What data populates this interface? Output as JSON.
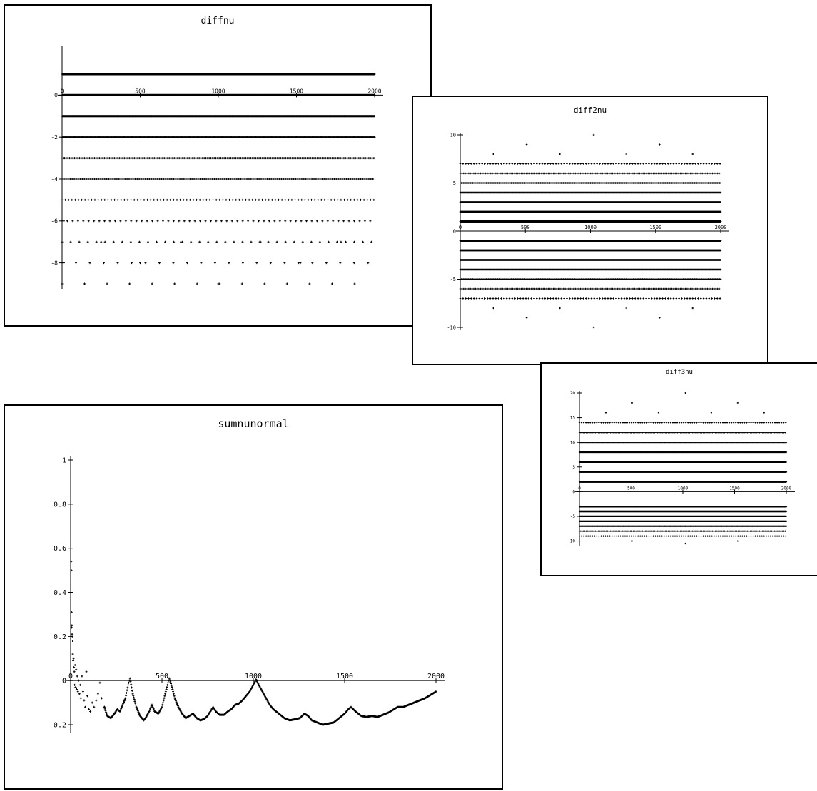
{
  "windows": [
    {
      "id": "diffnu",
      "title": "diffnu"
    },
    {
      "id": "diff2nu",
      "title": "diff2nu"
    },
    {
      "id": "diff3nu",
      "title": "diff3nu"
    },
    {
      "id": "sumnunormal",
      "title": "sumnunormal"
    }
  ],
  "chart_data": [
    {
      "type": "scatter",
      "title": "diffnu",
      "xlabel": "",
      "ylabel": "",
      "xlim": [
        0,
        2000
      ],
      "ylim": [
        -9,
        1
      ],
      "xticks": [
        0,
        500,
        1000,
        1500,
        2000
      ],
      "yticks": [
        0,
        -2,
        -4,
        -6,
        -8
      ],
      "xtick_labels": [
        "0",
        "500",
        "1000",
        "1500",
        "2000"
      ],
      "ytick_labels": [
        "0",
        "-2",
        "-4",
        "-6",
        "-8"
      ],
      "marker_color": "#000000",
      "series": [
        {
          "y": 1,
          "spacing": 1
        },
        {
          "y": 0,
          "spacing": 2
        },
        {
          "y": -1,
          "spacing": 3
        },
        {
          "y": -2,
          "spacing": 5
        },
        {
          "y": -3,
          "spacing": 8
        },
        {
          "y": -4,
          "spacing": 13
        },
        {
          "y": -5,
          "spacing": 21
        },
        {
          "y": -6,
          "spacing": 34
        },
        {
          "y": -7,
          "spacing": 55
        },
        {
          "y": -8,
          "spacing": 89
        },
        {
          "y": -9,
          "spacing": 144
        }
      ],
      "points": [
        {
          "x": 1000,
          "y": -9
        },
        {
          "x": 500,
          "y": -8
        },
        {
          "x": 1525,
          "y": -8
        },
        {
          "x": 250,
          "y": -7
        },
        {
          "x": 760,
          "y": -7
        },
        {
          "x": 1270,
          "y": -7
        },
        {
          "x": 1785,
          "y": -7
        }
      ]
    },
    {
      "type": "scatter",
      "title": "diff2nu",
      "xlabel": "",
      "ylabel": "",
      "xlim": [
        0,
        2000
      ],
      "ylim": [
        -10,
        10
      ],
      "xticks": [
        0,
        500,
        1000,
        1500,
        2000
      ],
      "yticks": [
        10,
        5,
        0,
        -5,
        -10
      ],
      "xtick_labels": [
        "0",
        "500",
        "1000",
        "1500",
        "2000"
      ],
      "ytick_labels": [
        "10",
        "5",
        "0",
        "-5",
        "-10"
      ],
      "marker_color": "#000000",
      "series": [
        {
          "y": 1,
          "spacing": 1
        },
        {
          "y": 2,
          "spacing": 2
        },
        {
          "y": 3,
          "spacing": 3
        },
        {
          "y": 4,
          "spacing": 5
        },
        {
          "y": 5,
          "spacing": 8
        },
        {
          "y": 6,
          "spacing": 13
        },
        {
          "y": 7,
          "spacing": 21
        },
        {
          "y": -1,
          "spacing": 1
        },
        {
          "y": -2,
          "spacing": 2
        },
        {
          "y": -3,
          "spacing": 3
        },
        {
          "y": -4,
          "spacing": 5
        },
        {
          "y": -5,
          "spacing": 8
        },
        {
          "y": -6,
          "spacing": 13
        },
        {
          "y": -7,
          "spacing": 21
        }
      ],
      "points": [
        {
          "x": 1025,
          "y": 10
        },
        {
          "x": 510,
          "y": 9
        },
        {
          "x": 1530,
          "y": 9
        },
        {
          "x": 255,
          "y": 8
        },
        {
          "x": 765,
          "y": 8
        },
        {
          "x": 1275,
          "y": 8
        },
        {
          "x": 1785,
          "y": 8
        },
        {
          "x": 1025,
          "y": -10
        },
        {
          "x": 510,
          "y": -9
        },
        {
          "x": 1530,
          "y": -9
        },
        {
          "x": 255,
          "y": -8
        },
        {
          "x": 765,
          "y": -8
        },
        {
          "x": 1275,
          "y": -8
        },
        {
          "x": 1785,
          "y": -8
        }
      ]
    },
    {
      "type": "scatter",
      "title": "diff3nu",
      "xlabel": "",
      "ylabel": "",
      "xlim": [
        0,
        2000
      ],
      "ylim": [
        -10.5,
        20
      ],
      "xticks": [
        0,
        500,
        1000,
        1500,
        2000
      ],
      "yticks": [
        20,
        15,
        10,
        5,
        0,
        -5,
        -10
      ],
      "xtick_labels": [
        "0",
        "500",
        "1000",
        "1500",
        "2000"
      ],
      "ytick_labels": [
        "20",
        "15",
        "10",
        "5",
        "0",
        "-5",
        "-10"
      ],
      "marker_color": "#000000",
      "series": [
        {
          "y": 2,
          "spacing": 1
        },
        {
          "y": 4,
          "spacing": 2
        },
        {
          "y": 6,
          "spacing": 3
        },
        {
          "y": 8,
          "spacing": 5
        },
        {
          "y": 10,
          "spacing": 8
        },
        {
          "y": 12,
          "spacing": 13
        },
        {
          "y": 14,
          "spacing": 21
        },
        {
          "y": -3,
          "spacing": 1
        },
        {
          "y": -4,
          "spacing": 2
        },
        {
          "y": -5,
          "spacing": 3
        },
        {
          "y": -6,
          "spacing": 5
        },
        {
          "y": -7,
          "spacing": 8
        },
        {
          "y": -8,
          "spacing": 13
        },
        {
          "y": -9,
          "spacing": 21
        }
      ],
      "points": [
        {
          "x": 1025,
          "y": 20
        },
        {
          "x": 510,
          "y": 18
        },
        {
          "x": 1530,
          "y": 18
        },
        {
          "x": 255,
          "y": 16
        },
        {
          "x": 765,
          "y": 16
        },
        {
          "x": 1275,
          "y": 16
        },
        {
          "x": 1785,
          "y": 16
        },
        {
          "x": 1025,
          "y": -10.5
        },
        {
          "x": 510,
          "y": -10
        },
        {
          "x": 1530,
          "y": -10
        }
      ]
    },
    {
      "type": "line",
      "title": "sumnunormal",
      "xlabel": "",
      "ylabel": "",
      "xlim": [
        0,
        2000
      ],
      "ylim": [
        -0.2,
        1
      ],
      "xticks": [
        0,
        500,
        1000,
        1500,
        2000
      ],
      "yticks": [
        1,
        0.8,
        0.6,
        0.4,
        0.2,
        0,
        -0.2
      ],
      "xtick_labels": [
        "0",
        "500",
        "1000",
        "1500",
        "2000"
      ],
      "ytick_labels": [
        "1",
        "0.8",
        "0.6",
        "0.4",
        "0.2",
        "0",
        "-0.2"
      ],
      "marker_color": "#000000",
      "early_points": [
        {
          "x": 2,
          "y": 1.0
        },
        {
          "x": 3,
          "y": 0.54
        },
        {
          "x": 4,
          "y": 0.5
        },
        {
          "x": 5,
          "y": 0.31
        },
        {
          "x": 6,
          "y": 0.24
        },
        {
          "x": 7,
          "y": 0.25
        },
        {
          "x": 8,
          "y": 0.21
        },
        {
          "x": 9,
          "y": 0.2
        },
        {
          "x": 10,
          "y": 0.18
        },
        {
          "x": 12,
          "y": 0.12
        },
        {
          "x": 14,
          "y": 0.09
        },
        {
          "x": 16,
          "y": 0.1
        },
        {
          "x": 18,
          "y": 0.06
        },
        {
          "x": 20,
          "y": 0.04
        },
        {
          "x": 22,
          "y": -0.02
        },
        {
          "x": 24,
          "y": 0.07
        },
        {
          "x": 27,
          "y": -0.03
        },
        {
          "x": 30,
          "y": 0.05
        },
        {
          "x": 33,
          "y": -0.04
        },
        {
          "x": 36,
          "y": 0.02
        },
        {
          "x": 40,
          "y": -0.05
        },
        {
          "x": 44,
          "y": 0.0
        },
        {
          "x": 48,
          "y": -0.06
        },
        {
          "x": 52,
          "y": -0.02
        },
        {
          "x": 56,
          "y": -0.08
        },
        {
          "x": 62,
          "y": 0.02
        },
        {
          "x": 68,
          "y": -0.05
        },
        {
          "x": 74,
          "y": -0.09
        },
        {
          "x": 80,
          "y": -0.12
        },
        {
          "x": 86,
          "y": 0.04
        },
        {
          "x": 92,
          "y": -0.07
        },
        {
          "x": 100,
          "y": -0.13
        },
        {
          "x": 108,
          "y": -0.14
        },
        {
          "x": 118,
          "y": -0.1
        },
        {
          "x": 128,
          "y": -0.12
        },
        {
          "x": 140,
          "y": -0.09
        },
        {
          "x": 150,
          "y": -0.06
        },
        {
          "x": 160,
          "y": -0.01
        },
        {
          "x": 170,
          "y": -0.08
        },
        {
          "x": 185,
          "y": -0.12
        }
      ],
      "curve": [
        [
          185,
          -0.12
        ],
        [
          200,
          -0.16
        ],
        [
          220,
          -0.17
        ],
        [
          240,
          -0.15
        ],
        [
          255,
          -0.13
        ],
        [
          270,
          -0.14
        ],
        [
          285,
          -0.11
        ],
        [
          300,
          -0.08
        ],
        [
          315,
          -0.02
        ],
        [
          325,
          0.01
        ],
        [
          340,
          -0.06
        ],
        [
          360,
          -0.12
        ],
        [
          380,
          -0.16
        ],
        [
          400,
          -0.18
        ],
        [
          410,
          -0.17
        ],
        [
          430,
          -0.14
        ],
        [
          445,
          -0.11
        ],
        [
          460,
          -0.14
        ],
        [
          480,
          -0.15
        ],
        [
          500,
          -0.12
        ],
        [
          515,
          -0.07
        ],
        [
          530,
          -0.02
        ],
        [
          540,
          0.01
        ],
        [
          555,
          -0.03
        ],
        [
          570,
          -0.08
        ],
        [
          590,
          -0.12
        ],
        [
          610,
          -0.15
        ],
        [
          630,
          -0.17
        ],
        [
          650,
          -0.16
        ],
        [
          670,
          -0.15
        ],
        [
          690,
          -0.17
        ],
        [
          710,
          -0.18
        ],
        [
          730,
          -0.175
        ],
        [
          750,
          -0.16
        ],
        [
          765,
          -0.14
        ],
        [
          780,
          -0.12
        ],
        [
          795,
          -0.14
        ],
        [
          815,
          -0.155
        ],
        [
          840,
          -0.155
        ],
        [
          860,
          -0.14
        ],
        [
          880,
          -0.13
        ],
        [
          900,
          -0.11
        ],
        [
          920,
          -0.105
        ],
        [
          940,
          -0.09
        ],
        [
          960,
          -0.07
        ],
        [
          980,
          -0.05
        ],
        [
          1000,
          -0.02
        ],
        [
          1015,
          0.005
        ],
        [
          1030,
          -0.02
        ],
        [
          1050,
          -0.05
        ],
        [
          1070,
          -0.08
        ],
        [
          1090,
          -0.11
        ],
        [
          1110,
          -0.13
        ],
        [
          1140,
          -0.15
        ],
        [
          1170,
          -0.17
        ],
        [
          1200,
          -0.18
        ],
        [
          1230,
          -0.175
        ],
        [
          1255,
          -0.17
        ],
        [
          1280,
          -0.15
        ],
        [
          1300,
          -0.16
        ],
        [
          1320,
          -0.18
        ],
        [
          1350,
          -0.19
        ],
        [
          1380,
          -0.2
        ],
        [
          1410,
          -0.195
        ],
        [
          1440,
          -0.19
        ],
        [
          1470,
          -0.17
        ],
        [
          1500,
          -0.15
        ],
        [
          1520,
          -0.13
        ],
        [
          1535,
          -0.12
        ],
        [
          1560,
          -0.14
        ],
        [
          1590,
          -0.16
        ],
        [
          1620,
          -0.165
        ],
        [
          1650,
          -0.16
        ],
        [
          1680,
          -0.165
        ],
        [
          1710,
          -0.155
        ],
        [
          1740,
          -0.145
        ],
        [
          1770,
          -0.13
        ],
        [
          1790,
          -0.12
        ],
        [
          1820,
          -0.12
        ],
        [
          1850,
          -0.11
        ],
        [
          1880,
          -0.1
        ],
        [
          1910,
          -0.09
        ],
        [
          1940,
          -0.08
        ],
        [
          1970,
          -0.065
        ],
        [
          2000,
          -0.05
        ]
      ]
    }
  ]
}
